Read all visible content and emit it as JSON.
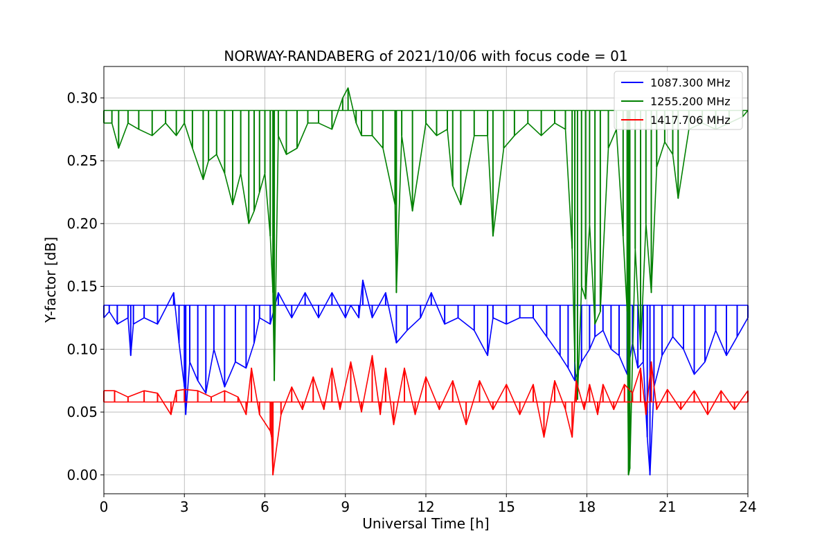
{
  "chart_data": {
    "type": "line",
    "title": "NORWAY-RANDABERG of 2021/10/06 with focus code = 01",
    "xlabel": "Universal Time [h]",
    "ylabel": "Y-factor [dB]",
    "xlim": [
      0,
      24
    ],
    "ylim": [
      -0.015,
      0.325
    ],
    "xticks": [
      0,
      3,
      6,
      9,
      12,
      15,
      18,
      21,
      24
    ],
    "xtick_labels": [
      "0",
      "3",
      "6",
      "9",
      "12",
      "15",
      "18",
      "21",
      "24"
    ],
    "yticks": [
      0.0,
      0.05,
      0.1,
      0.15,
      0.2,
      0.25,
      0.3
    ],
    "ytick_labels": [
      "0.00",
      "0.05",
      "0.10",
      "0.15",
      "0.20",
      "0.25",
      "0.30"
    ],
    "grid": true,
    "legend_position": "top-right",
    "series": [
      {
        "name": "1087.300 MHz",
        "color": "#0000ff",
        "baseline": 0.135,
        "x": [
          0.0,
          0.2,
          0.5,
          0.9,
          1.0,
          1.1,
          1.5,
          2.0,
          2.6,
          2.8,
          3.0,
          3.05,
          3.2,
          3.5,
          3.8,
          4.1,
          4.5,
          4.9,
          5.3,
          5.6,
          5.8,
          6.2,
          6.5,
          7.0,
          7.5,
          8.0,
          8.5,
          9.0,
          9.2,
          9.5,
          9.65,
          10.0,
          10.5,
          10.9,
          11.3,
          11.8,
          12.2,
          12.7,
          13.2,
          13.8,
          14.3,
          14.5,
          15.0,
          15.5,
          16.0,
          16.5,
          17.0,
          17.3,
          17.55,
          17.8,
          18.1,
          18.3,
          18.6,
          18.9,
          19.2,
          19.5,
          19.7,
          19.9,
          20.1,
          20.25,
          20.35,
          20.5,
          20.8,
          21.2,
          21.6,
          22.0,
          22.4,
          22.8,
          23.2,
          23.6,
          24.0
        ],
        "y": [
          0.125,
          0.13,
          0.12,
          0.125,
          0.095,
          0.12,
          0.125,
          0.12,
          0.145,
          0.105,
          0.07,
          0.048,
          0.09,
          0.075,
          0.065,
          0.1,
          0.07,
          0.09,
          0.085,
          0.105,
          0.125,
          0.12,
          0.145,
          0.125,
          0.145,
          0.125,
          0.145,
          0.125,
          0.135,
          0.125,
          0.155,
          0.125,
          0.145,
          0.105,
          0.115,
          0.125,
          0.145,
          0.12,
          0.125,
          0.115,
          0.095,
          0.125,
          0.12,
          0.125,
          0.125,
          0.11,
          0.095,
          0.085,
          0.075,
          0.09,
          0.1,
          0.11,
          0.115,
          0.1,
          0.095,
          0.08,
          0.105,
          0.085,
          0.09,
          0.03,
          0.0,
          0.07,
          0.095,
          0.11,
          0.1,
          0.08,
          0.09,
          0.115,
          0.095,
          0.11,
          0.125
        ]
      },
      {
        "name": "1255.200 MHz",
        "color": "#008000",
        "baseline": 0.29,
        "x": [
          0.0,
          0.3,
          0.55,
          0.9,
          1.3,
          1.8,
          2.3,
          2.7,
          3.0,
          3.3,
          3.7,
          3.9,
          4.2,
          4.5,
          4.8,
          5.1,
          5.4,
          5.6,
          5.8,
          6.0,
          6.2,
          6.3,
          6.35,
          6.5,
          6.8,
          7.2,
          7.6,
          8.0,
          8.5,
          8.9,
          9.1,
          9.4,
          9.6,
          10.0,
          10.4,
          10.85,
          10.9,
          11.1,
          11.5,
          12.0,
          12.4,
          12.8,
          13.0,
          13.3,
          13.8,
          14.3,
          14.5,
          14.9,
          15.3,
          15.8,
          16.3,
          16.8,
          17.2,
          17.45,
          17.55,
          17.65,
          17.8,
          17.95,
          18.1,
          18.3,
          18.5,
          18.8,
          19.1,
          19.35,
          19.5,
          19.55,
          19.6,
          19.8,
          20.0,
          20.2,
          20.4,
          20.6,
          20.9,
          21.2,
          21.4,
          21.8,
          22.3,
          22.8,
          23.3,
          23.8,
          24.0
        ],
        "y": [
          0.28,
          0.28,
          0.26,
          0.28,
          0.275,
          0.27,
          0.28,
          0.27,
          0.28,
          0.26,
          0.235,
          0.25,
          0.255,
          0.24,
          0.215,
          0.24,
          0.2,
          0.21,
          0.225,
          0.24,
          0.19,
          0.145,
          0.075,
          0.27,
          0.255,
          0.26,
          0.28,
          0.28,
          0.275,
          0.3,
          0.308,
          0.28,
          0.27,
          0.27,
          0.26,
          0.215,
          0.145,
          0.27,
          0.21,
          0.28,
          0.27,
          0.275,
          0.23,
          0.215,
          0.27,
          0.27,
          0.19,
          0.26,
          0.27,
          0.28,
          0.27,
          0.28,
          0.275,
          0.18,
          0.09,
          0.06,
          0.15,
          0.14,
          0.2,
          0.12,
          0.13,
          0.26,
          0.275,
          0.19,
          0.13,
          0.0,
          0.005,
          0.18,
          0.1,
          0.2,
          0.145,
          0.245,
          0.265,
          0.255,
          0.22,
          0.275,
          0.28,
          0.275,
          0.28,
          0.285,
          0.29
        ]
      },
      {
        "name": "1417.706 MHz",
        "color": "#ff0000",
        "baseline": 0.058,
        "x": [
          0.0,
          0.4,
          0.9,
          1.5,
          2.0,
          2.5,
          2.7,
          3.0,
          3.5,
          4.0,
          4.5,
          5.0,
          5.3,
          5.5,
          5.8,
          6.2,
          6.25,
          6.3,
          6.6,
          7.0,
          7.4,
          7.8,
          8.2,
          8.5,
          8.8,
          9.2,
          9.6,
          10.0,
          10.3,
          10.5,
          10.8,
          11.2,
          11.6,
          12.0,
          12.5,
          13.0,
          13.5,
          14.0,
          14.5,
          15.0,
          15.5,
          16.0,
          16.4,
          16.8,
          17.2,
          17.45,
          17.6,
          17.9,
          18.1,
          18.4,
          18.6,
          19.0,
          19.4,
          19.7,
          20.0,
          20.2,
          20.4,
          20.6,
          21.0,
          21.5,
          22.0,
          22.5,
          23.0,
          23.5,
          24.0
        ],
        "y": [
          0.067,
          0.067,
          0.062,
          0.067,
          0.065,
          0.048,
          0.067,
          0.068,
          0.067,
          0.062,
          0.067,
          0.062,
          0.048,
          0.085,
          0.048,
          0.035,
          0.03,
          0.0,
          0.048,
          0.07,
          0.052,
          0.078,
          0.052,
          0.085,
          0.052,
          0.09,
          0.05,
          0.095,
          0.048,
          0.085,
          0.04,
          0.085,
          0.048,
          0.078,
          0.052,
          0.075,
          0.04,
          0.075,
          0.052,
          0.072,
          0.048,
          0.072,
          0.03,
          0.075,
          0.052,
          0.03,
          0.075,
          0.052,
          0.072,
          0.048,
          0.072,
          0.052,
          0.072,
          0.065,
          0.085,
          0.048,
          0.09,
          0.052,
          0.068,
          0.052,
          0.067,
          0.048,
          0.067,
          0.052,
          0.067
        ]
      }
    ]
  }
}
